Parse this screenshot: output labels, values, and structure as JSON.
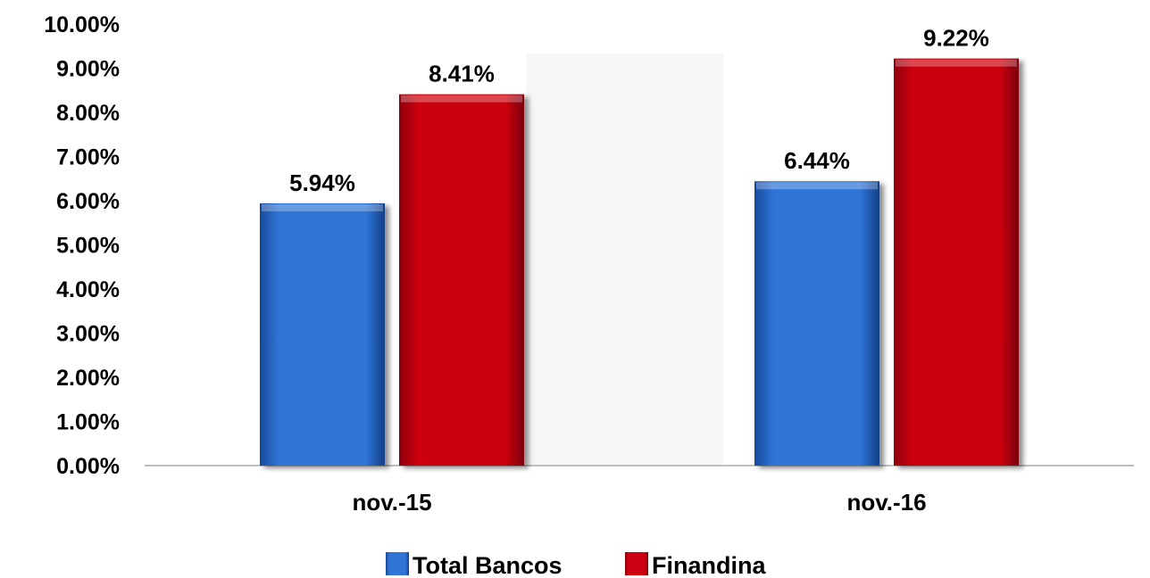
{
  "chart_data": {
    "type": "bar",
    "categories": [
      "nov.-15",
      "nov.-16"
    ],
    "series": [
      {
        "name": "Total Bancos",
        "values": [
          5.94,
          6.44
        ],
        "color": "#1f5fbf",
        "labels": [
          "5.94%",
          "6.44%"
        ]
      },
      {
        "name": "Finandina",
        "values": [
          8.41,
          9.22
        ],
        "color": "#c0000a",
        "labels": [
          "8.41%",
          "9.22%"
        ]
      }
    ],
    "ylim": [
      0,
      10
    ],
    "yticks": [
      "0.00%",
      "1.00%",
      "2.00%",
      "3.00%",
      "4.00%",
      "5.00%",
      "6.00%",
      "7.00%",
      "8.00%",
      "9.00%",
      "10.00%"
    ],
    "grid": false,
    "legend_position": "bottom"
  }
}
